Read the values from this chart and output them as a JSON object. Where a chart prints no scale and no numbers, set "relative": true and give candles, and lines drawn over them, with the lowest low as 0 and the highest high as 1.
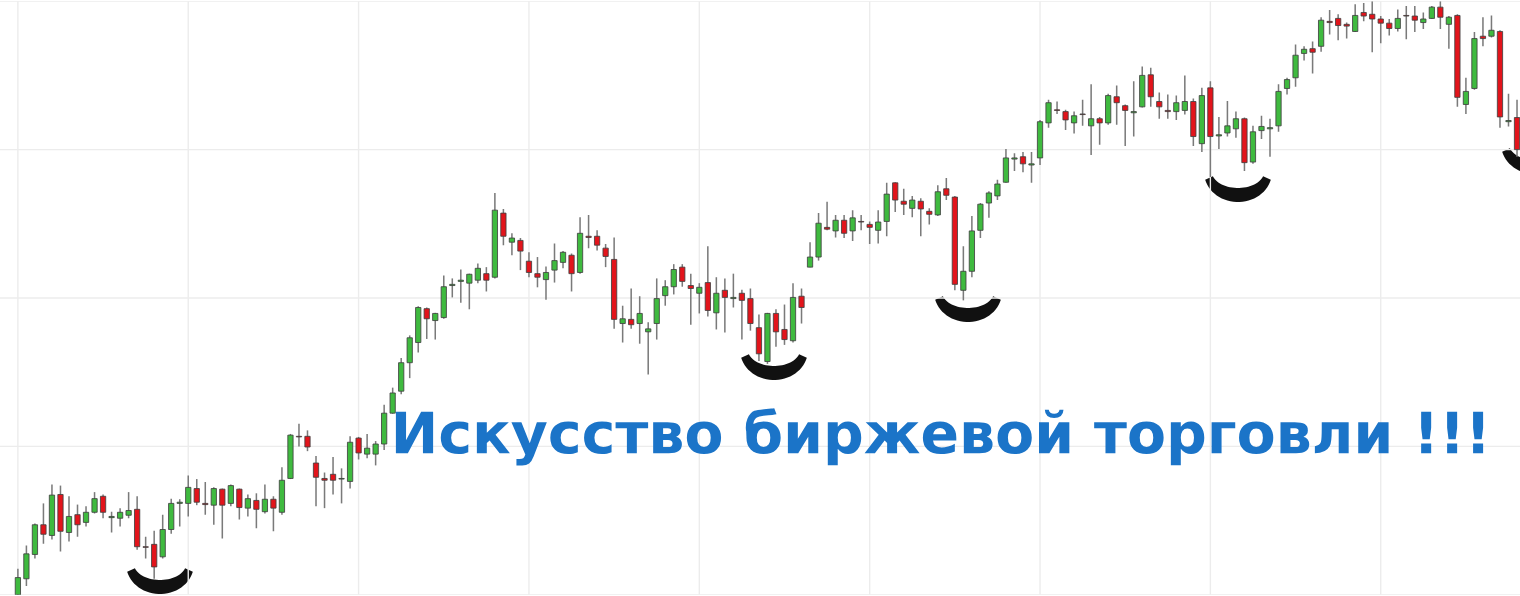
{
  "chart_data": {
    "type": "candlestick",
    "title": "Искусство биржевой торговли !!!",
    "relative": true,
    "grid": true,
    "categories": [
      null,
      null,
      null,
      null,
      null,
      null,
      null,
      null,
      null,
      null,
      null,
      null,
      null,
      null,
      null,
      null,
      null,
      null,
      null,
      null,
      null,
      null,
      null,
      null,
      null,
      null,
      null,
      null,
      null,
      null,
      null,
      null,
      null,
      null,
      null,
      null,
      null,
      null,
      null,
      null,
      null,
      null,
      null,
      null,
      null,
      null,
      null,
      null,
      null,
      null,
      null,
      null,
      null,
      null,
      null,
      null,
      null,
      null,
      null,
      null,
      null,
      null,
      null,
      null,
      null,
      null,
      null,
      null,
      null,
      null,
      null,
      null,
      null,
      null,
      null,
      null,
      null,
      null,
      null,
      null,
      null,
      null,
      null,
      null,
      null,
      null,
      null,
      null,
      null,
      null,
      null,
      null,
      null,
      null,
      null,
      null,
      null,
      null,
      null,
      null,
      null,
      null,
      null,
      null,
      null,
      null,
      null,
      null,
      null,
      null,
      null,
      null,
      null,
      null,
      null,
      null,
      null,
      null,
      null,
      null,
      null,
      null,
      null,
      null,
      null,
      null,
      null,
      null,
      null,
      null,
      null,
      null,
      null,
      null,
      null,
      null,
      null,
      null,
      null,
      null,
      null,
      null,
      null,
      null,
      null,
      null,
      null,
      null,
      null,
      null,
      null,
      null,
      null,
      null,
      null,
      null,
      null,
      null,
      null,
      null,
      null,
      null,
      null,
      null,
      null,
      null,
      null,
      null,
      null,
      null,
      null,
      null,
      null,
      null,
      null,
      null,
      null
    ],
    "ohlc": [
      [
        0,
        0.044,
        0,
        0.029
      ],
      [
        0.027,
        0.083,
        0.015,
        0.069
      ],
      [
        0.068,
        0.12,
        0.061,
        0.118
      ],
      [
        0.118,
        0.154,
        0.086,
        0.102
      ],
      [
        0.1,
        0.186,
        0.093,
        0.168
      ],
      [
        0.169,
        0.184,
        0.073,
        0.107
      ],
      [
        0.105,
        0.166,
        0.09,
        0.132
      ],
      [
        0.135,
        0.152,
        0.098,
        0.118
      ],
      [
        0.122,
        0.149,
        0.115,
        0.139
      ],
      [
        0.139,
        0.173,
        0.137,
        0.162
      ],
      [
        0.166,
        0.169,
        0.129,
        0.139
      ],
      [
        0.13,
        0.14,
        0.105,
        0.132
      ],
      [
        0.129,
        0.146,
        0.115,
        0.139
      ],
      [
        0.134,
        0.173,
        0.129,
        0.142
      ],
      [
        0.144,
        0.166,
        0.076,
        0.081
      ],
      [
        0.081,
        0.098,
        0.061,
        0.08
      ],
      [
        0.085,
        0.108,
        0.027,
        0.047
      ],
      [
        0.064,
        0.135,
        0.061,
        0.11
      ],
      [
        0.11,
        0.162,
        0.103,
        0.154
      ],
      [
        0.154,
        0.161,
        0.115,
        0.156
      ],
      [
        0.154,
        0.201,
        0.132,
        0.181
      ],
      [
        0.179,
        0.195,
        0.151,
        0.156
      ],
      [
        0.154,
        0.19,
        0.135,
        0.152
      ],
      [
        0.151,
        0.181,
        0.118,
        0.179
      ],
      [
        0.178,
        0.179,
        0.095,
        0.151
      ],
      [
        0.154,
        0.186,
        0.149,
        0.184
      ],
      [
        0.178,
        0.179,
        0.127,
        0.147
      ],
      [
        0.146,
        0.169,
        0.132,
        0.162
      ],
      [
        0.159,
        0.171,
        0.112,
        0.144
      ],
      [
        0.14,
        0.186,
        0.137,
        0.161
      ],
      [
        0.161,
        0.166,
        0.107,
        0.146
      ],
      [
        0.139,
        0.215,
        0.135,
        0.193
      ],
      [
        0.196,
        0.271,
        0.195,
        0.269
      ],
      [
        0.267,
        0.288,
        0.25,
        0.266
      ],
      [
        0.267,
        0.277,
        0.242,
        0.249
      ],
      [
        0.222,
        0.234,
        0.149,
        0.198
      ],
      [
        0.196,
        0.206,
        0.146,
        0.193
      ],
      [
        0.203,
        0.232,
        0.169,
        0.193
      ],
      [
        0.195,
        0.213,
        0.154,
        0.196
      ],
      [
        0.191,
        0.267,
        0.179,
        0.257
      ],
      [
        0.264,
        0.266,
        0.228,
        0.239
      ],
      [
        0.237,
        0.271,
        0.23,
        0.247
      ],
      [
        0.237,
        0.259,
        0.218,
        0.254
      ],
      [
        0.254,
        0.32,
        0.244,
        0.306
      ],
      [
        0.306,
        0.349,
        0.305,
        0.34
      ],
      [
        0.343,
        0.399,
        0.338,
        0.391
      ],
      [
        0.391,
        0.437,
        0.365,
        0.433
      ],
      [
        0.425,
        0.486,
        0.408,
        0.484
      ],
      [
        0.482,
        0.484,
        0.431,
        0.465
      ],
      [
        0.462,
        0.475,
        0.43,
        0.474
      ],
      [
        0.467,
        0.538,
        0.465,
        0.519
      ],
      [
        0.521,
        0.533,
        0.501,
        0.523
      ],
      [
        0.528,
        0.548,
        0.492,
        0.53
      ],
      [
        0.525,
        0.541,
        0.481,
        0.54
      ],
      [
        0.53,
        0.558,
        0.525,
        0.55
      ],
      [
        0.541,
        0.552,
        0.511,
        0.53
      ],
      [
        0.535,
        0.677,
        0.533,
        0.648
      ],
      [
        0.643,
        0.65,
        0.589,
        0.604
      ],
      [
        0.594,
        0.609,
        0.572,
        0.601
      ],
      [
        0.597,
        0.601,
        0.547,
        0.579
      ],
      [
        0.562,
        0.577,
        0.535,
        0.543
      ],
      [
        0.541,
        0.569,
        0.518,
        0.535
      ],
      [
        0.531,
        0.553,
        0.497,
        0.543
      ],
      [
        0.547,
        0.592,
        0.526,
        0.563
      ],
      [
        0.56,
        0.579,
        0.55,
        0.577
      ],
      [
        0.572,
        0.575,
        0.511,
        0.541
      ],
      [
        0.543,
        0.636,
        0.541,
        0.609
      ],
      [
        0.604,
        0.64,
        0.584,
        0.602
      ],
      [
        0.604,
        0.614,
        0.58,
        0.589
      ],
      [
        0.584,
        0.591,
        0.552,
        0.57
      ],
      [
        0.565,
        0.602,
        0.448,
        0.464
      ],
      [
        0.457,
        0.487,
        0.425,
        0.465
      ],
      [
        0.464,
        0.516,
        0.448,
        0.455
      ],
      [
        0.457,
        0.503,
        0.423,
        0.474
      ],
      [
        0.443,
        0.459,
        0.371,
        0.448
      ],
      [
        0.457,
        0.533,
        0.43,
        0.499
      ],
      [
        0.504,
        0.53,
        0.487,
        0.519
      ],
      [
        0.519,
        0.557,
        0.506,
        0.548
      ],
      [
        0.552,
        0.557,
        0.519,
        0.528
      ],
      [
        0.521,
        0.541,
        0.455,
        0.516
      ],
      [
        0.508,
        0.525,
        0.474,
        0.518
      ],
      [
        0.526,
        0.587,
        0.469,
        0.479
      ],
      [
        0.475,
        0.535,
        0.447,
        0.508
      ],
      [
        0.513,
        0.533,
        0.442,
        0.501
      ],
      [
        0.499,
        0.541,
        0.484,
        0.501
      ],
      [
        0.508,
        0.514,
        0.43,
        0.496
      ],
      [
        0.499,
        0.516,
        0.445,
        0.457
      ],
      [
        0.45,
        0.472,
        0.394,
        0.406
      ],
      [
        0.393,
        0.475,
        0.389,
        0.474
      ],
      [
        0.474,
        0.481,
        0.418,
        0.443
      ],
      [
        0.447,
        0.489,
        0.421,
        0.43
      ],
      [
        0.428,
        0.525,
        0.425,
        0.501
      ],
      [
        0.503,
        0.516,
        0.457,
        0.484
      ],
      [
        0.552,
        0.594,
        0.552,
        0.569
      ],
      [
        0.569,
        0.643,
        0.563,
        0.626
      ],
      [
        0.619,
        0.662,
        0.614,
        0.616
      ],
      [
        0.613,
        0.64,
        0.602,
        0.631
      ],
      [
        0.631,
        0.64,
        0.601,
        0.609
      ],
      [
        0.613,
        0.648,
        0.596,
        0.635
      ],
      [
        0.629,
        0.64,
        0.614,
        0.628
      ],
      [
        0.624,
        0.629,
        0.591,
        0.619
      ],
      [
        0.614,
        0.648,
        0.592,
        0.628
      ],
      [
        0.629,
        0.694,
        0.604,
        0.675
      ],
      [
        0.694,
        0.695,
        0.645,
        0.665
      ],
      [
        0.663,
        0.684,
        0.64,
        0.658
      ],
      [
        0.651,
        0.672,
        0.636,
        0.665
      ],
      [
        0.663,
        0.668,
        0.604,
        0.65
      ],
      [
        0.646,
        0.651,
        0.624,
        0.641
      ],
      [
        0.64,
        0.69,
        0.638,
        0.679
      ],
      [
        0.684,
        0.702,
        0.665,
        0.673
      ],
      [
        0.67,
        0.672,
        0.513,
        0.523
      ],
      [
        0.513,
        0.587,
        0.496,
        0.545
      ],
      [
        0.545,
        0.638,
        0.535,
        0.613
      ],
      [
        0.614,
        0.66,
        0.601,
        0.658
      ],
      [
        0.66,
        0.68,
        0.635,
        0.677
      ],
      [
        0.672,
        0.699,
        0.665,
        0.692
      ],
      [
        0.695,
        0.751,
        0.694,
        0.736
      ],
      [
        0.734,
        0.744,
        0.714,
        0.736
      ],
      [
        0.738,
        0.746,
        0.712,
        0.726
      ],
      [
        0.724,
        0.746,
        0.694,
        0.726
      ],
      [
        0.736,
        0.8,
        0.724,
        0.797
      ],
      [
        0.795,
        0.834,
        0.787,
        0.829
      ],
      [
        0.817,
        0.831,
        0.81,
        0.816
      ],
      [
        0.814,
        0.817,
        0.783,
        0.8
      ],
      [
        0.795,
        0.814,
        0.777,
        0.807
      ],
      [
        0.81,
        0.834,
        0.79,
        0.809
      ],
      [
        0.79,
        0.86,
        0.741,
        0.802
      ],
      [
        0.802,
        0.805,
        0.758,
        0.795
      ],
      [
        0.795,
        0.844,
        0.792,
        0.841
      ],
      [
        0.839,
        0.858,
        0.792,
        0.829
      ],
      [
        0.824,
        0.826,
        0.756,
        0.816
      ],
      [
        0.812,
        0.865,
        0.772,
        0.814
      ],
      [
        0.822,
        0.89,
        0.821,
        0.875
      ],
      [
        0.876,
        0.888,
        0.822,
        0.839
      ],
      [
        0.831,
        0.846,
        0.802,
        0.822
      ],
      [
        0.816,
        0.843,
        0.802,
        0.814
      ],
      [
        0.814,
        0.841,
        0.8,
        0.829
      ],
      [
        0.816,
        0.875,
        0.809,
        0.831
      ],
      [
        0.831,
        0.836,
        0.756,
        0.772
      ],
      [
        0.76,
        0.854,
        0.746,
        0.841
      ],
      [
        0.854,
        0.865,
        0.704,
        0.772
      ],
      [
        0.773,
        0.805,
        0.751,
        0.775
      ],
      [
        0.778,
        0.832,
        0.772,
        0.79
      ],
      [
        0.785,
        0.814,
        0.77,
        0.802
      ],
      [
        0.802,
        0.804,
        0.714,
        0.728
      ],
      [
        0.729,
        0.79,
        0.726,
        0.78
      ],
      [
        0.782,
        0.807,
        0.768,
        0.789
      ],
      [
        0.785,
        0.802,
        0.738,
        0.787
      ],
      [
        0.79,
        0.86,
        0.78,
        0.848
      ],
      [
        0.853,
        0.871,
        0.843,
        0.868
      ],
      [
        0.871,
        0.927,
        0.856,
        0.909
      ],
      [
        0.912,
        0.924,
        0.9,
        0.919
      ],
      [
        0.92,
        0.932,
        0.878,
        0.914
      ],
      [
        0.924,
        0.973,
        0.915,
        0.968
      ],
      [
        0.966,
        0.985,
        0.944,
        0.964
      ],
      [
        0.971,
        0.978,
        0.934,
        0.959
      ],
      [
        0.961,
        0.964,
        0.937,
        0.958
      ],
      [
        0.949,
        0.995,
        0.948,
        0.976
      ],
      [
        0.981,
        0.997,
        0.966,
        0.975
      ],
      [
        0.978,
        1,
        0.914,
        0.97
      ],
      [
        0.97,
        0.975,
        0.929,
        0.963
      ],
      [
        0.963,
        0.97,
        0.942,
        0.954
      ],
      [
        0.954,
        0.986,
        0.949,
        0.971
      ],
      [
        0.976,
        0.992,
        0.936,
        0.975
      ],
      [
        0.975,
        0.992,
        0.948,
        0.968
      ],
      [
        0.964,
        0.981,
        0.953,
        0.97
      ],
      [
        0.971,
        0.992,
        0.97,
        0.99
      ],
      [
        0.99,
        1,
        0.953,
        0.973
      ],
      [
        0.961,
        0.975,
        0.92,
        0.973
      ],
      [
        0.976,
        0.978,
        0.822,
        0.838
      ],
      [
        0.826,
        0.871,
        0.81,
        0.848
      ],
      [
        0.853,
        0.948,
        0.851,
        0.937
      ],
      [
        0.941,
        0.973,
        0.924,
        0.937
      ],
      [
        0.941,
        0.976,
        0.939,
        0.951
      ],
      [
        0.949,
        0.951,
        0.787,
        0.805
      ],
      [
        0.797,
        0.844,
        0.789,
        0.799
      ],
      [
        0.804,
        0.834,
        0.738,
        0.75
      ]
    ],
    "colors": [
      "#3fba3f",
      "#3fba3f",
      "#3fba3f",
      "#e2141b",
      "#3fba3f",
      "#e2141b",
      "#3fba3f",
      "#e2141b",
      "#3fba3f",
      "#3fba3f",
      "#e2141b",
      "#3fba3f",
      "#3fba3f",
      "#3fba3f",
      "#e2141b",
      "#e2141b",
      "#e2141b",
      "#3fba3f",
      "#3fba3f",
      "#3fba3f",
      "#3fba3f",
      "#e2141b",
      "#e2141b",
      "#3fba3f",
      "#e2141b",
      "#3fba3f",
      "#e2141b",
      "#3fba3f",
      "#e2141b",
      "#3fba3f",
      "#e2141b",
      "#3fba3f",
      "#3fba3f",
      "#e2141b",
      "#e2141b",
      "#e2141b",
      "#e2141b",
      "#e2141b",
      "#3fba3f",
      "#3fba3f",
      "#e2141b",
      "#3fba3f",
      "#3fba3f",
      "#3fba3f",
      "#3fba3f",
      "#3fba3f",
      "#3fba3f",
      "#3fba3f",
      "#e2141b",
      "#3fba3f",
      "#3fba3f",
      "#3fba3f",
      "#3fba3f",
      "#3fba3f",
      "#3fba3f",
      "#e2141b",
      "#3fba3f",
      "#e2141b",
      "#3fba3f",
      "#e2141b",
      "#e2141b",
      "#e2141b",
      "#3fba3f",
      "#3fba3f",
      "#3fba3f",
      "#e2141b",
      "#3fba3f",
      "#e2141b",
      "#e2141b",
      "#e2141b",
      "#e2141b",
      "#3fba3f",
      "#e2141b",
      "#3fba3f",
      "#3fba3f",
      "#3fba3f",
      "#3fba3f",
      "#3fba3f",
      "#e2141b",
      "#e2141b",
      "#3fba3f",
      "#e2141b",
      "#3fba3f",
      "#e2141b",
      "#3fba3f",
      "#e2141b",
      "#e2141b",
      "#e2141b",
      "#3fba3f",
      "#e2141b",
      "#e2141b",
      "#3fba3f",
      "#e2141b",
      "#3fba3f",
      "#3fba3f",
      "#e2141b",
      "#3fba3f",
      "#e2141b",
      "#3fba3f",
      "#e2141b",
      "#e2141b",
      "#3fba3f",
      "#3fba3f",
      "#e2141b",
      "#e2141b",
      "#3fba3f",
      "#e2141b",
      "#e2141b",
      "#3fba3f",
      "#e2141b",
      "#e2141b",
      "#3fba3f",
      "#3fba3f",
      "#3fba3f",
      "#3fba3f",
      "#3fba3f",
      "#3fba3f",
      "#3fba3f",
      "#e2141b",
      "#3fba3f",
      "#3fba3f",
      "#3fba3f",
      "#e2141b",
      "#e2141b",
      "#3fba3f",
      "#e2141b",
      "#3fba3f",
      "#e2141b",
      "#3fba3f",
      "#e2141b",
      "#e2141b",
      "#3fba3f",
      "#3fba3f",
      "#e2141b",
      "#e2141b",
      "#e2141b",
      "#3fba3f",
      "#3fba3f",
      "#e2141b",
      "#3fba3f",
      "#e2141b",
      "#3fba3f",
      "#3fba3f",
      "#3fba3f",
      "#e2141b",
      "#3fba3f",
      "#3fba3f",
      "#3fba3f",
      "#3fba3f",
      "#3fba3f",
      "#3fba3f",
      "#3fba3f",
      "#e2141b",
      "#3fba3f",
      "#e2141b",
      "#e2141b",
      "#e2141b",
      "#3fba3f",
      "#e2141b",
      "#e2141b",
      "#e2141b",
      "#e2141b",
      "#3fba3f",
      "#e2141b",
      "#e2141b",
      "#3fba3f",
      "#3fba3f",
      "#e2141b",
      "#3fba3f",
      "#e2141b",
      "#3fba3f",
      "#3fba3f",
      "#e2141b",
      "#3fba3f",
      "#e2141b",
      "#3fba3f",
      "#e2141b"
    ]
  }
}
